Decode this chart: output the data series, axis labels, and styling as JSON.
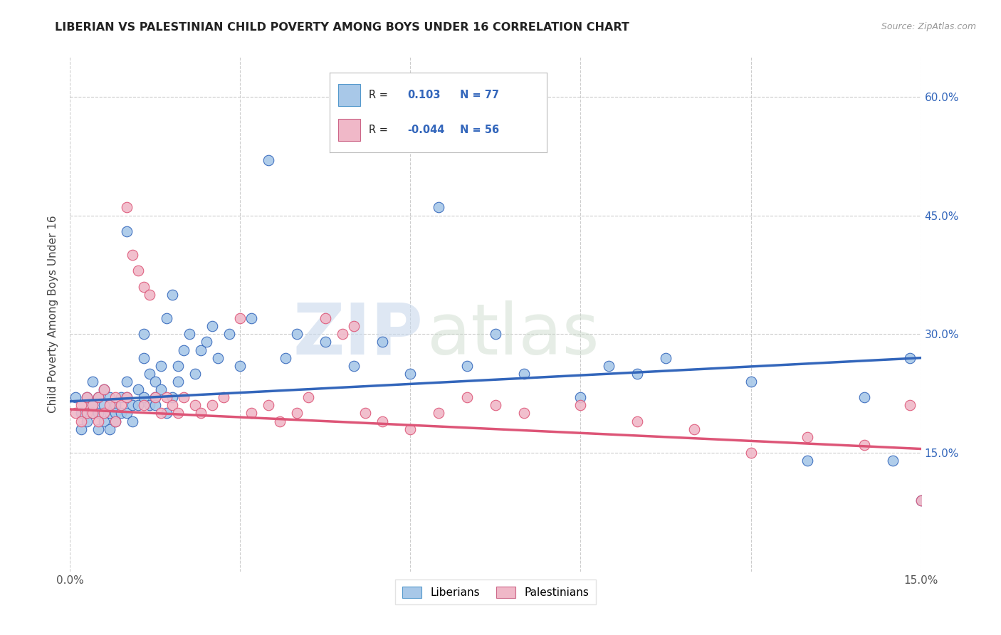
{
  "title": "LIBERIAN VS PALESTINIAN CHILD POVERTY AMONG BOYS UNDER 16 CORRELATION CHART",
  "source": "Source: ZipAtlas.com",
  "ylabel": "Child Poverty Among Boys Under 16",
  "xlim": [
    0.0,
    0.15
  ],
  "ylim": [
    0.0,
    0.65
  ],
  "x_ticks": [
    0.0,
    0.03,
    0.06,
    0.09,
    0.12,
    0.15
  ],
  "x_tick_labels": [
    "0.0%",
    "",
    "",
    "",
    "",
    "15.0%"
  ],
  "y_ticks_right": [
    0.15,
    0.3,
    0.45,
    0.6
  ],
  "y_tick_labels_right": [
    "15.0%",
    "30.0%",
    "45.0%",
    "60.0%"
  ],
  "r_liberian": 0.103,
  "n_liberian": 77,
  "r_palestinian": -0.044,
  "n_palestinian": 56,
  "color_liberian": "#a8c8e8",
  "color_palestinian": "#f0b8c8",
  "color_liberian_line": "#3366bb",
  "color_palestinian_line": "#dd5577",
  "background_color": "#ffffff",
  "grid_color": "#cccccc",
  "liberian_x": [
    0.001,
    0.002,
    0.002,
    0.003,
    0.003,
    0.004,
    0.004,
    0.004,
    0.005,
    0.005,
    0.005,
    0.006,
    0.006,
    0.006,
    0.007,
    0.007,
    0.007,
    0.008,
    0.008,
    0.008,
    0.009,
    0.009,
    0.01,
    0.01,
    0.01,
    0.01,
    0.011,
    0.011,
    0.012,
    0.012,
    0.013,
    0.013,
    0.013,
    0.014,
    0.014,
    0.015,
    0.015,
    0.015,
    0.016,
    0.016,
    0.017,
    0.017,
    0.018,
    0.018,
    0.019,
    0.019,
    0.02,
    0.021,
    0.022,
    0.023,
    0.024,
    0.025,
    0.026,
    0.028,
    0.03,
    0.032,
    0.035,
    0.038,
    0.04,
    0.045,
    0.05,
    0.055,
    0.06,
    0.065,
    0.07,
    0.075,
    0.08,
    0.09,
    0.095,
    0.1,
    0.105,
    0.12,
    0.13,
    0.14,
    0.145,
    0.148,
    0.15
  ],
  "liberian_y": [
    0.22,
    0.2,
    0.18,
    0.22,
    0.19,
    0.21,
    0.2,
    0.24,
    0.22,
    0.2,
    0.18,
    0.21,
    0.19,
    0.23,
    0.2,
    0.22,
    0.18,
    0.21,
    0.19,
    0.2,
    0.22,
    0.2,
    0.22,
    0.24,
    0.2,
    0.43,
    0.21,
    0.19,
    0.21,
    0.23,
    0.27,
    0.3,
    0.22,
    0.21,
    0.25,
    0.22,
    0.24,
    0.21,
    0.23,
    0.26,
    0.32,
    0.2,
    0.35,
    0.22,
    0.26,
    0.24,
    0.28,
    0.3,
    0.25,
    0.28,
    0.29,
    0.31,
    0.27,
    0.3,
    0.26,
    0.32,
    0.52,
    0.27,
    0.3,
    0.29,
    0.26,
    0.29,
    0.25,
    0.46,
    0.26,
    0.3,
    0.25,
    0.22,
    0.26,
    0.25,
    0.27,
    0.24,
    0.14,
    0.22,
    0.14,
    0.27,
    0.09
  ],
  "palestinian_x": [
    0.001,
    0.002,
    0.002,
    0.003,
    0.003,
    0.004,
    0.004,
    0.005,
    0.005,
    0.006,
    0.006,
    0.007,
    0.008,
    0.008,
    0.009,
    0.01,
    0.01,
    0.011,
    0.012,
    0.013,
    0.013,
    0.014,
    0.015,
    0.016,
    0.017,
    0.018,
    0.019,
    0.02,
    0.022,
    0.023,
    0.025,
    0.027,
    0.03,
    0.032,
    0.035,
    0.037,
    0.04,
    0.042,
    0.045,
    0.048,
    0.05,
    0.052,
    0.055,
    0.06,
    0.065,
    0.07,
    0.075,
    0.08,
    0.09,
    0.1,
    0.11,
    0.12,
    0.13,
    0.14,
    0.148,
    0.15
  ],
  "palestinian_y": [
    0.2,
    0.19,
    0.21,
    0.2,
    0.22,
    0.2,
    0.21,
    0.22,
    0.19,
    0.2,
    0.23,
    0.21,
    0.19,
    0.22,
    0.21,
    0.46,
    0.22,
    0.4,
    0.38,
    0.21,
    0.36,
    0.35,
    0.22,
    0.2,
    0.22,
    0.21,
    0.2,
    0.22,
    0.21,
    0.2,
    0.21,
    0.22,
    0.32,
    0.2,
    0.21,
    0.19,
    0.2,
    0.22,
    0.32,
    0.3,
    0.31,
    0.2,
    0.19,
    0.18,
    0.2,
    0.22,
    0.21,
    0.2,
    0.21,
    0.19,
    0.18,
    0.15,
    0.17,
    0.16,
    0.21,
    0.09
  ]
}
